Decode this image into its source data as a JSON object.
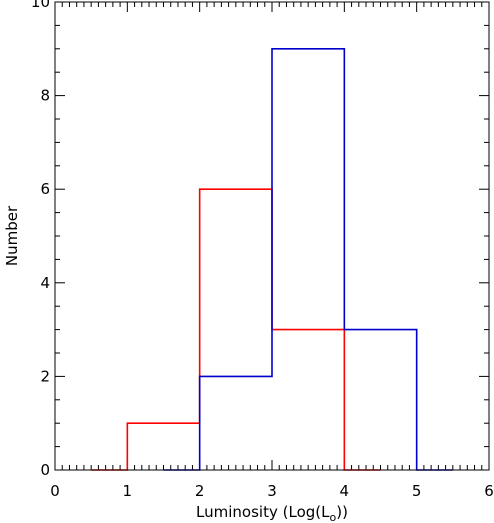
{
  "chart_data": {
    "type": "histogram",
    "title": "",
    "xlabel": "Luminosity (Log(L",
    "xlabel_sub": "o",
    "xlabel_end": "))",
    "ylabel": "Number",
    "xlim": [
      0,
      6
    ],
    "ylim": [
      0,
      10
    ],
    "x_ticks": [
      "0",
      "1",
      "2",
      "3",
      "4",
      "5",
      "6"
    ],
    "y_ticks": [
      "0",
      "2",
      "4",
      "6",
      "8",
      "10"
    ],
    "grid": false,
    "series": [
      {
        "color": "#ff0000",
        "bin_edges": [
          0.5,
          1,
          2,
          3,
          4,
          4.5
        ],
        "counts": [
          0,
          1,
          6,
          3,
          0
        ]
      },
      {
        "color": "#0000cc",
        "bin_edges": [
          1.5,
          2,
          3,
          4,
          5,
          5.5
        ],
        "counts": [
          0,
          2,
          9,
          3,
          0
        ]
      }
    ]
  }
}
